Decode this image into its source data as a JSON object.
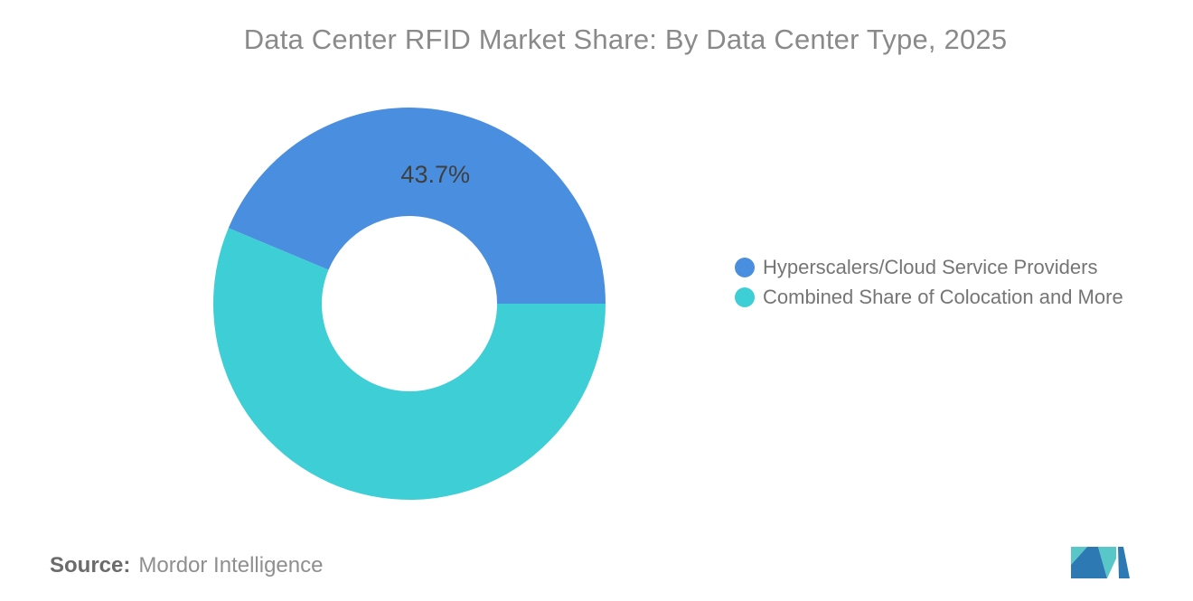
{
  "page": {
    "background": "#FFFFFF"
  },
  "header": {
    "title": "Data Center RFID Market Share: By Data Center Type, 2025",
    "color": "#8A8A8A"
  },
  "chart_data": {
    "type": "pie",
    "subtype": "donut",
    "title": "Data Center RFID Market Share: By Data Center Type, 2025",
    "unit": "%",
    "legend_position": "right",
    "hole": true,
    "series": [
      {
        "name": "Hyperscalers/Cloud Service Providers",
        "value": 43.7,
        "color": "#4A8EDF",
        "label": "43.7%"
      },
      {
        "name": "Combined Share of Colocation and More",
        "value": 56.3,
        "color": "#3ECED6",
        "label": ""
      }
    ],
    "label_color": "#3F3F3F"
  },
  "legend": {
    "text_color": "#757575"
  },
  "source": {
    "label": "Source:",
    "value": "Mordor Intelligence",
    "label_color": "#6B6B6B",
    "value_color": "#8F8F8F"
  },
  "logo": {
    "alt": "Mordor Intelligence logo",
    "blue": "#2C79B4",
    "teal": "#59C7C7"
  }
}
